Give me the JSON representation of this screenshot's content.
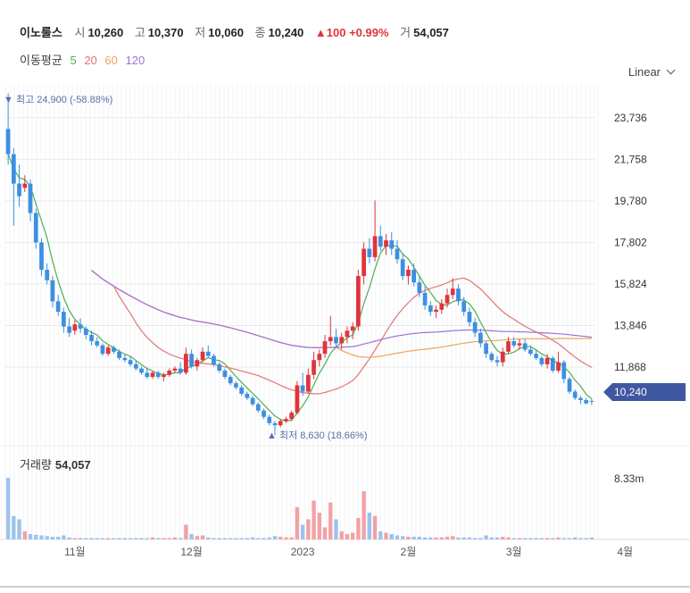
{
  "stock": {
    "name": "이노룰스",
    "open_label": "시",
    "open": "10,260",
    "high_label": "고",
    "high": "10,370",
    "low_label": "저",
    "low": "10,060",
    "close_label": "종",
    "close": "10,240",
    "change": "▲100 +0.99%",
    "volume_label": "거",
    "volume": "54,057"
  },
  "ma": {
    "label": "이동평균",
    "periods": [
      {
        "label": "5",
        "color": "#4caf50"
      },
      {
        "label": "20",
        "color": "#e57373"
      },
      {
        "label": "60",
        "color": "#f0a35a"
      },
      {
        "label": "120",
        "color": "#a070d8"
      }
    ]
  },
  "scale": {
    "label": "Linear"
  },
  "markers": {
    "high": {
      "prefix": "▼ 최고",
      "value": "24,900",
      "pct": "(-58.88%)"
    },
    "low": {
      "prefix": "▲ 최저",
      "value": "8,630",
      "pct": "(18.66%)"
    }
  },
  "current_price_tag": "10,240",
  "volume_panel": {
    "title": "거래량",
    "value": "54,057",
    "axis_max": "8.33m"
  },
  "colors": {
    "up": "#e0343b",
    "down": "#3d8fe0",
    "grid": "#eeeeee"
  },
  "chart_data": {
    "type": "candlestick",
    "y_ticks": [
      23736,
      21758,
      19780,
      17802,
      15824,
      13846,
      11868
    ],
    "y_tick_labels": [
      "23,736",
      "21,758",
      "19,780",
      "17,802",
      "15,824",
      "13,846",
      "11,868"
    ],
    "ylim": [
      8300,
      25300
    ],
    "x_labels": [
      {
        "label": "11월",
        "index": 12
      },
      {
        "label": "12월",
        "index": 33
      },
      {
        "label": "2023",
        "index": 53
      },
      {
        "label": "2월",
        "index": 72
      },
      {
        "label": "3월",
        "index": 91
      },
      {
        "label": "4월",
        "index": 111
      }
    ],
    "candles": [
      [
        23200,
        24900,
        21500,
        22000
      ],
      [
        22000,
        22300,
        18600,
        20600
      ],
      [
        20600,
        21500,
        19500,
        20000
      ],
      [
        20400,
        21000,
        20200,
        20600
      ],
      [
        20600,
        20800,
        18800,
        19200
      ],
      [
        19200,
        19400,
        17500,
        17800
      ],
      [
        17800,
        18000,
        16200,
        16500
      ],
      [
        16500,
        16800,
        15800,
        16000
      ],
      [
        16000,
        16200,
        14700,
        15000
      ],
      [
        15000,
        15300,
        14300,
        14500
      ],
      [
        14500,
        14700,
        13500,
        13800
      ],
      [
        13800,
        14200,
        13300,
        13500
      ],
      [
        13600,
        14100,
        13400,
        13900
      ],
      [
        13900,
        14200,
        13500,
        13700
      ],
      [
        13700,
        13800,
        13200,
        13400
      ],
      [
        13400,
        13600,
        12900,
        13100
      ],
      [
        13100,
        13300,
        12800,
        12900
      ],
      [
        12900,
        13000,
        12400,
        12500
      ],
      [
        12500,
        12900,
        12400,
        12800
      ],
      [
        12800,
        12900,
        12500,
        12600
      ],
      [
        12600,
        12700,
        12200,
        12300
      ],
      [
        12300,
        12500,
        12100,
        12200
      ],
      [
        12200,
        12400,
        11900,
        12000
      ],
      [
        12000,
        12200,
        11700,
        11800
      ],
      [
        11800,
        11900,
        11500,
        11600
      ],
      [
        11600,
        11800,
        11300,
        11400
      ],
      [
        11400,
        11700,
        11300,
        11600
      ],
      [
        11600,
        11700,
        11300,
        11400
      ],
      [
        11400,
        11600,
        11200,
        11500
      ],
      [
        11500,
        11800,
        11400,
        11700
      ],
      [
        11700,
        11900,
        11600,
        11800
      ],
      [
        11800,
        12100,
        11500,
        11600
      ],
      [
        11600,
        12800,
        11500,
        12500
      ],
      [
        12500,
        12700,
        11800,
        11900
      ],
      [
        11900,
        12300,
        11700,
        12200
      ],
      [
        12200,
        12800,
        12100,
        12600
      ],
      [
        12600,
        12900,
        12300,
        12400
      ],
      [
        12400,
        12500,
        11900,
        12000
      ],
      [
        12000,
        12100,
        11600,
        11700
      ],
      [
        11700,
        11800,
        11300,
        11400
      ],
      [
        11400,
        11500,
        11000,
        11100
      ],
      [
        11100,
        11200,
        10800,
        10900
      ],
      [
        10900,
        11000,
        10500,
        10600
      ],
      [
        10600,
        10700,
        10300,
        10400
      ],
      [
        10400,
        10500,
        10000,
        10100
      ],
      [
        10100,
        10200,
        9700,
        9800
      ],
      [
        9800,
        9900,
        9400,
        9500
      ],
      [
        9500,
        9600,
        9100,
        9200
      ],
      [
        9200,
        9300,
        8630,
        9100
      ],
      [
        9100,
        9400,
        9000,
        9300
      ],
      [
        9300,
        9500,
        9200,
        9400
      ],
      [
        9400,
        9800,
        9300,
        9700
      ],
      [
        9700,
        11200,
        9600,
        11000
      ],
      [
        11000,
        11600,
        10500,
        10700
      ],
      [
        10700,
        11800,
        10600,
        11500
      ],
      [
        11500,
        12600,
        11300,
        12200
      ],
      [
        12200,
        12700,
        11900,
        12500
      ],
      [
        12500,
        13400,
        12300,
        13100
      ],
      [
        13100,
        14300,
        12900,
        13300
      ],
      [
        13300,
        13700,
        12800,
        13000
      ],
      [
        13000,
        13500,
        12700,
        13300
      ],
      [
        13300,
        13800,
        13000,
        13600
      ],
      [
        13600,
        14000,
        13200,
        13800
      ],
      [
        13800,
        16500,
        13600,
        16200
      ],
      [
        16200,
        17800,
        15800,
        17500
      ],
      [
        17500,
        18000,
        16800,
        17100
      ],
      [
        17100,
        19800,
        16900,
        18100
      ],
      [
        18100,
        18600,
        17400,
        17600
      ],
      [
        17600,
        18200,
        17200,
        17900
      ],
      [
        17900,
        18300,
        17200,
        17500
      ],
      [
        17500,
        17900,
        16800,
        17000
      ],
      [
        17000,
        17300,
        16000,
        16200
      ],
      [
        16200,
        16700,
        15800,
        16500
      ],
      [
        16500,
        16800,
        15700,
        15900
      ],
      [
        15900,
        16200,
        15200,
        15400
      ],
      [
        15400,
        15700,
        14600,
        14800
      ],
      [
        14800,
        15000,
        14300,
        14500
      ],
      [
        14500,
        14800,
        14200,
        14600
      ],
      [
        14600,
        15100,
        14400,
        14900
      ],
      [
        14900,
        15600,
        14700,
        15300
      ],
      [
        15300,
        16100,
        15100,
        15600
      ],
      [
        15600,
        15800,
        14800,
        15000
      ],
      [
        15000,
        15200,
        14300,
        14500
      ],
      [
        14500,
        14700,
        13800,
        14000
      ],
      [
        14000,
        14200,
        13300,
        13500
      ],
      [
        13500,
        13700,
        12800,
        13000
      ],
      [
        13000,
        13100,
        12300,
        12500
      ],
      [
        12500,
        12600,
        12100,
        12200
      ],
      [
        12200,
        12400,
        11900,
        12100
      ],
      [
        12100,
        12800,
        11900,
        12600
      ],
      [
        12600,
        13300,
        12500,
        13100
      ],
      [
        13100,
        13300,
        12800,
        12900
      ],
      [
        12900,
        13200,
        12700,
        13000
      ],
      [
        13000,
        13200,
        12600,
        12700
      ],
      [
        12700,
        12900,
        12400,
        12500
      ],
      [
        12500,
        12700,
        12200,
        12300
      ],
      [
        12300,
        12400,
        11900,
        12000
      ],
      [
        12000,
        12500,
        11800,
        12300
      ],
      [
        12300,
        12400,
        11600,
        11700
      ],
      [
        11700,
        12600,
        11600,
        12100
      ],
      [
        12100,
        12200,
        11100,
        11300
      ],
      [
        11300,
        11400,
        10600,
        10700
      ],
      [
        10700,
        10800,
        10300,
        10400
      ],
      [
        10400,
        10500,
        10100,
        10300
      ],
      [
        10300,
        10400,
        10100,
        10140
      ],
      [
        10260,
        10370,
        10060,
        10240
      ]
    ],
    "volumes": [
      92,
      35,
      30,
      12,
      8,
      7,
      6,
      5,
      4,
      4,
      6,
      3,
      2,
      2,
      2,
      2,
      2,
      2,
      2,
      2,
      2,
      2,
      2,
      2,
      2,
      2,
      3,
      2,
      2,
      2,
      3,
      2,
      22,
      8,
      5,
      6,
      3,
      2,
      2,
      2,
      2,
      2,
      2,
      2,
      3,
      2,
      2,
      3,
      5,
      4,
      3,
      3,
      48,
      22,
      30,
      58,
      40,
      18,
      55,
      30,
      12,
      8,
      10,
      32,
      72,
      40,
      35,
      12,
      10,
      8,
      6,
      5,
      4,
      4,
      4,
      3,
      3,
      3,
      3,
      4,
      5,
      3,
      3,
      3,
      2,
      2,
      6,
      3,
      3,
      4,
      3,
      2,
      2,
      2,
      2,
      2,
      2,
      2,
      2,
      3,
      2,
      2,
      3,
      2,
      2,
      3
    ],
    "series": [
      {
        "name": "5",
        "period": 5
      },
      {
        "name": "20",
        "period": 20
      },
      {
        "name": "60",
        "period": 60
      },
      {
        "name": "120",
        "period": 120
      }
    ]
  }
}
